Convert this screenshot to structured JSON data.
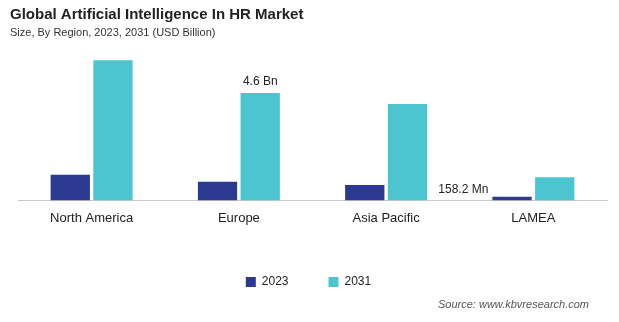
{
  "chart_data": {
    "type": "bar",
    "title": "Global Artificial Intelligence In HR Market",
    "subtitle": "Size, By Region, 2023, 2031 (USD Billion)",
    "categories": [
      "North America",
      "Europe",
      "Asia Pacific",
      "LAMEA"
    ],
    "series": [
      {
        "name": "2023",
        "color": "#2b3990",
        "values": [
          1.1,
          0.8,
          0.66,
          0.1582
        ],
        "value_labels": [
          null,
          null,
          null,
          "158.2 Mn"
        ]
      },
      {
        "name": "2031",
        "color": "#4bc6d0",
        "values": [
          6.0,
          4.6,
          4.13,
          0.99
        ],
        "value_labels": [
          null,
          "4.6 Bn",
          null,
          null
        ]
      }
    ],
    "ylim": [
      0,
      6.3
    ],
    "grid": false,
    "legend": "bottom",
    "data_labels": true,
    "tick_labels": "x",
    "source": "Source: www.kbvresearch.com"
  }
}
